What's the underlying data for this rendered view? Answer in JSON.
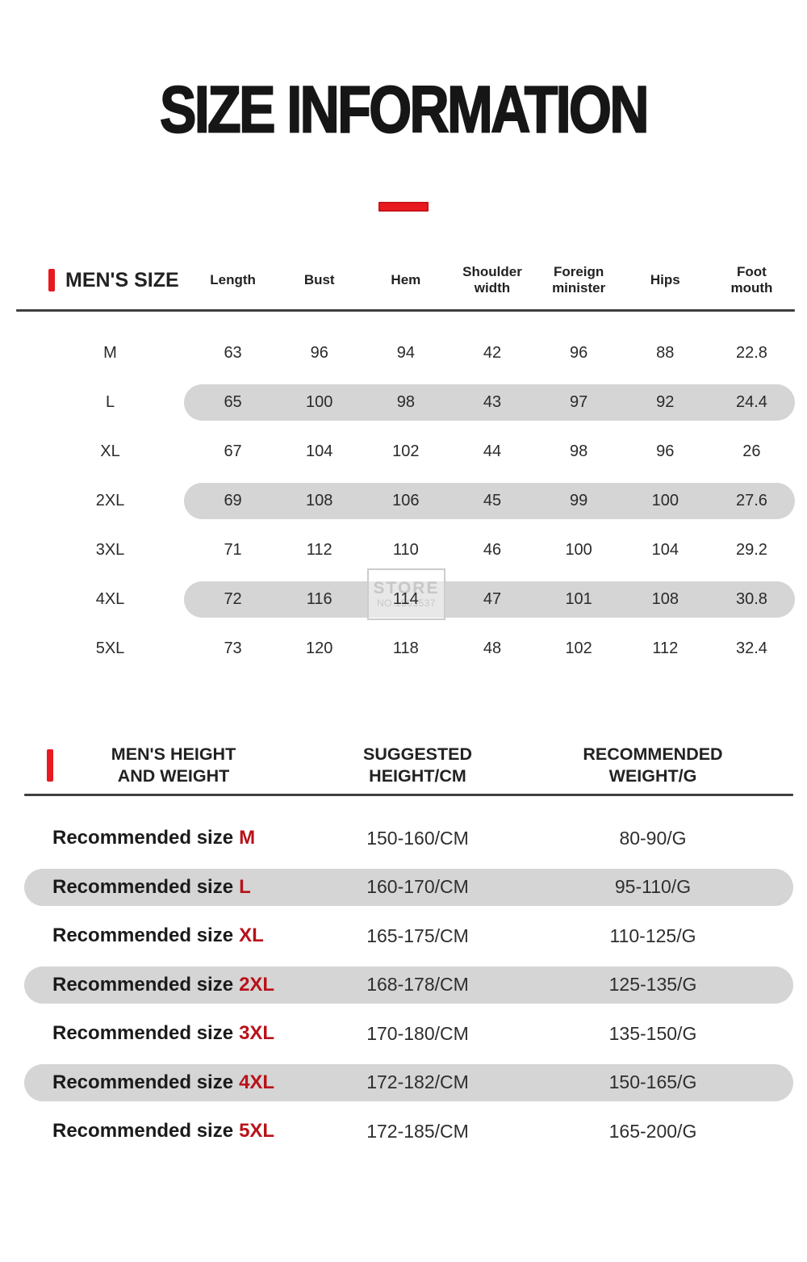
{
  "page": {
    "title": "SIZE INFORMATION"
  },
  "colors": {
    "accent_red": "#e8191f",
    "dark_red": "#b8121a",
    "pill_gray": "#d5d5d5"
  },
  "watermark": {
    "line1": "STORE",
    "line2": "NO.1503537"
  },
  "size_table": {
    "section_label": "MEN'S SIZE",
    "columns": [
      "Length",
      "Bust",
      "Hem",
      "Shoulder\nwidth",
      "Foreign\nminister",
      "Hips",
      "Foot\nmouth"
    ],
    "rows": [
      {
        "size": "M",
        "values": [
          "63",
          "96",
          "94",
          "42",
          "96",
          "88",
          "22.8"
        ],
        "highlight": false
      },
      {
        "size": "L",
        "values": [
          "65",
          "100",
          "98",
          "43",
          "97",
          "92",
          "24.4"
        ],
        "highlight": true
      },
      {
        "size": "XL",
        "values": [
          "67",
          "104",
          "102",
          "44",
          "98",
          "96",
          "26"
        ],
        "highlight": false
      },
      {
        "size": "2XL",
        "values": [
          "69",
          "108",
          "106",
          "45",
          "99",
          "100",
          "27.6"
        ],
        "highlight": true
      },
      {
        "size": "3XL",
        "values": [
          "71",
          "112",
          "110",
          "46",
          "100",
          "104",
          "29.2"
        ],
        "highlight": false
      },
      {
        "size": "4XL",
        "values": [
          "72",
          "116",
          "114",
          "47",
          "101",
          "108",
          "30.8"
        ],
        "highlight": true
      },
      {
        "size": "5XL",
        "values": [
          "73",
          "120",
          "118",
          "48",
          "102",
          "112",
          "32.4"
        ],
        "highlight": false
      }
    ]
  },
  "fit_table": {
    "columns": [
      "MEN'S HEIGHT\nAND WEIGHT",
      "SUGGESTED\nHEIGHT/CM",
      "RECOMMENDED\nWEIGHT/G"
    ],
    "label_prefix": "Recommended size",
    "rows": [
      {
        "label_prefix": "Recommended size",
        "size": "M",
        "height": "150-160/CM",
        "weight": "80-90/G",
        "highlight": false
      },
      {
        "label_prefix": "Recommended size",
        "size": "L",
        "height": "160-170/CM",
        "weight": "95-110/G",
        "highlight": true
      },
      {
        "label_prefix": "Recommended size",
        "size": "XL",
        "height": "165-175/CM",
        "weight": "110-125/G",
        "highlight": false
      },
      {
        "label_prefix": "Recommended size",
        "size": "2XL",
        "height": "168-178/CM",
        "weight": "125-135/G",
        "highlight": true
      },
      {
        "label_prefix": "Recommended size",
        "size": "3XL",
        "height": "170-180/CM",
        "weight": "135-150/G",
        "highlight": false
      },
      {
        "label_prefix": "Recommended size",
        "size": "4XL",
        "height": "172-182/CM",
        "weight": "150-165/G",
        "highlight": true
      },
      {
        "label_prefix": "Recommended size",
        "size": "5XL",
        "height": "172-185/CM",
        "weight": "165-200/G",
        "highlight": false
      }
    ]
  }
}
